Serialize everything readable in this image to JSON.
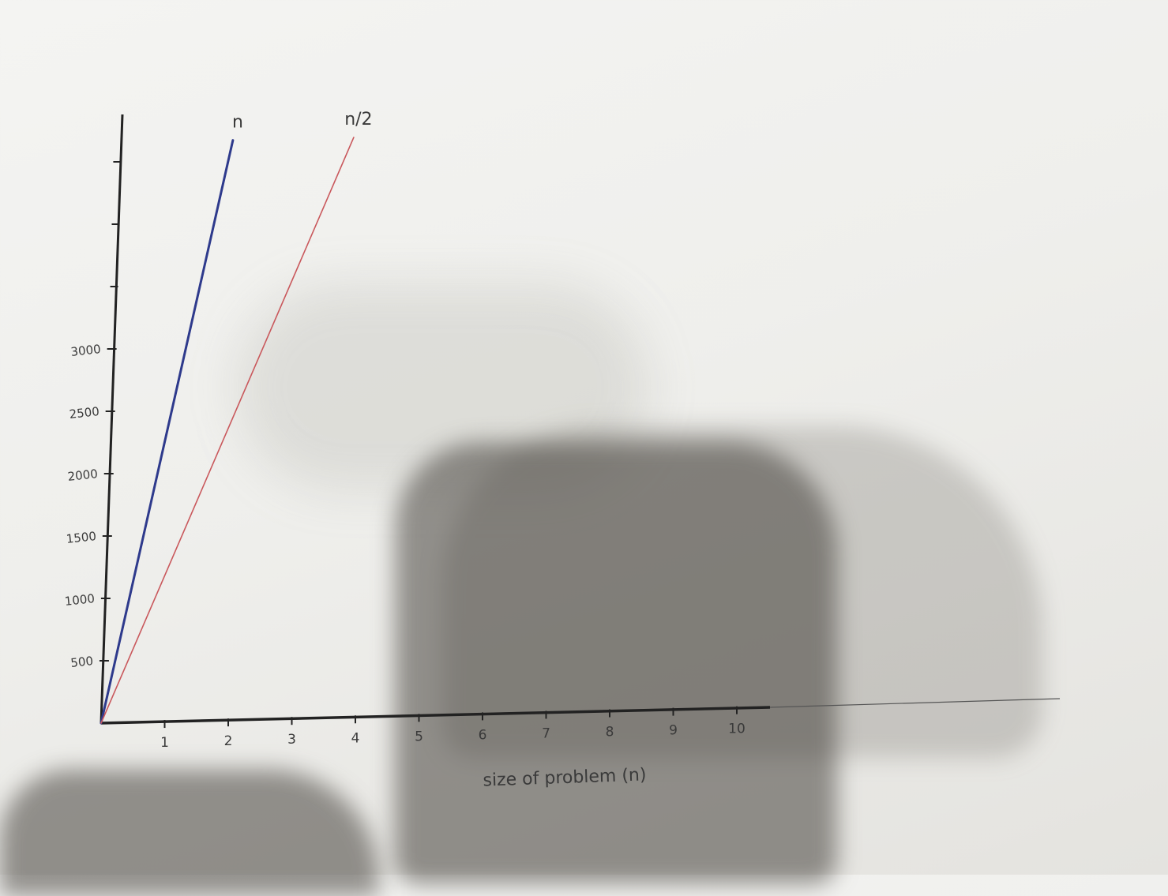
{
  "chart_data": {
    "type": "line",
    "title": "",
    "xlabel": "size of problem (n)",
    "ylabel": "",
    "x_ticks": [
      "1",
      "2",
      "3",
      "4",
      "5",
      "6",
      "7",
      "8",
      "9",
      "10"
    ],
    "y_ticks": [
      "500",
      "1000",
      "1500",
      "2000",
      "2500",
      "3000"
    ],
    "xlim": [
      0,
      10.5
    ],
    "ylim": [
      0,
      4500
    ],
    "grid": false,
    "legend": "labels at line ends",
    "series": [
      {
        "name": "n",
        "color": "#2e3a8c",
        "x": [
          0,
          1.85
        ],
        "y": [
          0,
          4650
        ]
      },
      {
        "name": "n/2",
        "color": "#c9585c",
        "x": [
          0,
          3.75
        ],
        "y": [
          0,
          4650
        ]
      }
    ]
  }
}
